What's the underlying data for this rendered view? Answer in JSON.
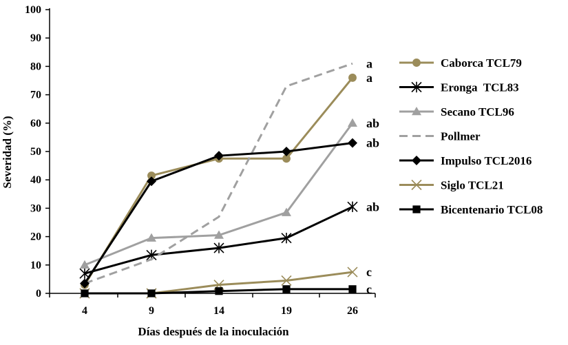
{
  "chart_data": {
    "type": "line",
    "title": "",
    "xlabel": "Días después de la inoculación",
    "ylabel": "Severidad (%)",
    "x": [
      4,
      9,
      14,
      19,
      26
    ],
    "x_tick_labels": [
      "4",
      "9",
      "14",
      "19",
      "26"
    ],
    "ylim": [
      0,
      100
    ],
    "y_ticks": [
      0,
      10,
      20,
      30,
      40,
      50,
      60,
      70,
      80,
      90,
      100
    ],
    "grid": false,
    "legend_position": "right",
    "series": [
      {
        "name": "Caborca TCL79",
        "values": [
          3,
          41.5,
          47.5,
          47.5,
          76
        ],
        "color": "#9b8c5a",
        "marker": "circle",
        "dash": false,
        "letter": "a"
      },
      {
        "name": "Eronga  TCL83",
        "values": [
          7,
          13.5,
          16,
          19.5,
          30.5
        ],
        "color": "#000000",
        "marker": "asterisk",
        "dash": false,
        "letter": "ab"
      },
      {
        "name": "Secano TCL96",
        "values": [
          10,
          19.5,
          20.5,
          28.5,
          60
        ],
        "color": "#a0a0a0",
        "marker": "triangle",
        "dash": false,
        "letter": "ab"
      },
      {
        "name": "Pollmer",
        "values": [
          3.5,
          12,
          27,
          73,
          81
        ],
        "color": "#a0a0a0",
        "marker": "none",
        "dash": true,
        "letter": "a"
      },
      {
        "name": "Impulso TCL2016",
        "values": [
          3.5,
          39.5,
          48.5,
          50,
          53
        ],
        "color": "#000000",
        "marker": "diamond",
        "dash": false,
        "letter": "ab"
      },
      {
        "name": "Siglo TCL21",
        "values": [
          0,
          0,
          3,
          4.5,
          7.5
        ],
        "color": "#9b8c5a",
        "marker": "x",
        "dash": false,
        "letter": "c"
      },
      {
        "name": "Bicentenario TCL08",
        "values": [
          0,
          0,
          0.8,
          1.5,
          1.5
        ],
        "color": "#000000",
        "marker": "square",
        "dash": false,
        "letter": "c"
      }
    ],
    "significance_labels": [
      {
        "text": "a",
        "series": "Pollmer"
      },
      {
        "text": "a",
        "series": "Caborca TCL79"
      },
      {
        "text": "ab",
        "series": "Secano TCL96"
      },
      {
        "text": "ab",
        "series": "Impulso TCL2016"
      },
      {
        "text": "ab",
        "series": "Eronga  TCL83"
      },
      {
        "text": "c",
        "series": "Siglo TCL21"
      },
      {
        "text": "c",
        "series": "Bicentenario TCL08"
      }
    ]
  }
}
